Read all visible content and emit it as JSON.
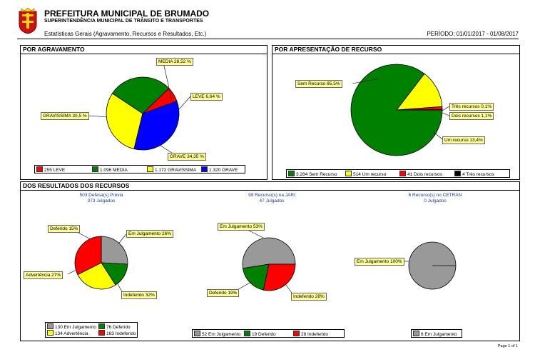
{
  "header": {
    "title": "PREFEITURA MUNICIPAL DE BRUMADO",
    "subtitle": "SUPERINTENDÊNCIA MUNICIPAL DE TRÂNSITO E TRANSPORTES",
    "stats_label": "Estatísticas Gerais (Agravamento, Recursos e Resultados, Etc.)",
    "period": "PERÍODO: 01/01/2017 - 01/08/2017"
  },
  "colors": {
    "red": "#ff0000",
    "green": "#008000",
    "yellow": "#ffff00",
    "blue": "#0000ff",
    "gray": "#999999",
    "black": "#000000",
    "callout": "#ffff99"
  },
  "panels": {
    "agravamento_title": "POR AGRAVAMENTO",
    "recurso_title": "POR APRESENTAÇÃO DE RECURSO",
    "resultados_title": "DOS RESULTADOS DOS RECURSOS"
  },
  "summary": {
    "previa": {
      "line1": "503 Defesa(s) Prévia",
      "line2": "373 Julgados"
    },
    "jari": {
      "line1": "99 Recurso(s) na JARI",
      "line2": "47 Julgados"
    },
    "cetran": {
      "line1": "6 Recurso(s) no CETRAN",
      "line2": "0 Julgados"
    }
  },
  "chart_data": [
    {
      "type": "pie",
      "title": "POR AGRAVAMENTO",
      "labels": [
        "LEVE",
        "MEDIA",
        "GRAVISSIMA",
        "GRAVE"
      ],
      "values": [
        255,
        1096,
        1172,
        1320
      ],
      "percent_labels": [
        "LEVE 6,64 %",
        "MEDIA 28,52 %",
        "GRAVISSIMA 30,5 %",
        "GRAVE 34,35 %"
      ],
      "legend": [
        "255 LEVE",
        "1.096 MEDIA",
        "1.172 GRAVISSIMA",
        "1.320 GRAVE"
      ],
      "colors": [
        "#ff0000",
        "#008000",
        "#ffff00",
        "#0000ff"
      ]
    },
    {
      "type": "pie",
      "title": "POR APRESENTAÇÃO DE RECURSO",
      "labels": [
        "Sem Recurso",
        "Um recurso",
        "Dois recursos",
        "Três recursos"
      ],
      "values": [
        3284,
        514,
        41,
        4
      ],
      "percent_labels": [
        "Sem Recurso 85,5%",
        "Um recurso 13,4%",
        "Dois recursos 1,1%",
        "Três recursos 0,1%"
      ],
      "legend": [
        "3.284 Sem Recurso",
        "514 Um recurso",
        "41 Dois recursos",
        "4 Três recursos"
      ],
      "colors": [
        "#008000",
        "#ffff00",
        "#ff0000",
        "#000000"
      ]
    },
    {
      "type": "pie",
      "title": "503 Defesa(s) Prévia",
      "labels": [
        "Em Julgamento",
        "Deferido",
        "Advertência",
        "Indeferido"
      ],
      "values": [
        130,
        76,
        134,
        163
      ],
      "percent_labels": [
        "Em Julgamento 26%",
        "Deferido 15%",
        "Advertência 27%",
        "Indeferido 32%"
      ],
      "legend": [
        "130 Em Julgamento",
        "76 Deferido",
        "134 Advertência",
        "163 Indeferido"
      ],
      "colors": [
        "#999999",
        "#008000",
        "#ffff00",
        "#ff0000"
      ]
    },
    {
      "type": "pie",
      "title": "99 Recurso(s) na JARI",
      "labels": [
        "Em Julgamento",
        "Deferido",
        "Indeferido"
      ],
      "values": [
        52,
        19,
        28
      ],
      "percent_labels": [
        "Em Julgamento 53%",
        "Deferido 19%",
        "Indeferido 28%"
      ],
      "legend": [
        "52 Em Julgamento",
        "19 Deferido",
        "28 Indeferido"
      ],
      "colors": [
        "#999999",
        "#008000",
        "#ff0000"
      ]
    },
    {
      "type": "pie",
      "title": "6 Recurso(s) no CETRAN",
      "labels": [
        "Em Julgamento"
      ],
      "values": [
        6
      ],
      "percent_labels": [
        "Em Julgamento 100%"
      ],
      "legend": [
        "6 Em Julgamento"
      ],
      "colors": [
        "#999999"
      ]
    }
  ],
  "footer": {
    "page": "Page 1 of 1"
  }
}
